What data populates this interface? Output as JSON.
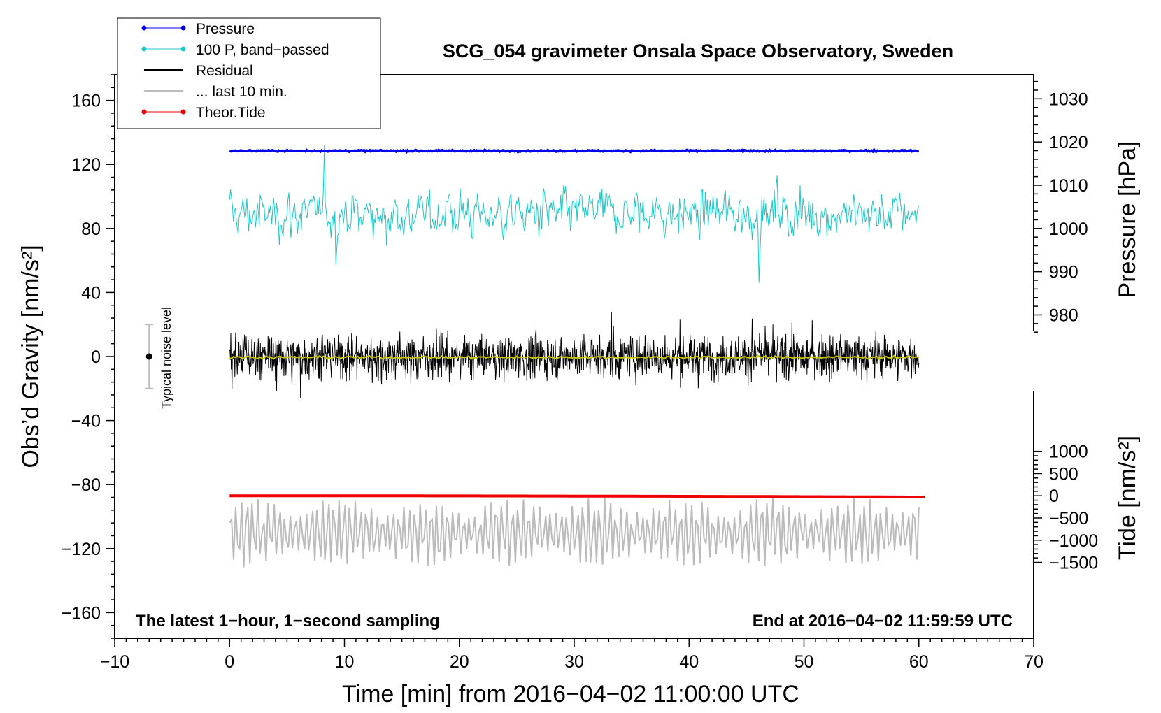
{
  "chart_data": {
    "type": "line",
    "title": "SCG_054 gravimeter Onsala Space Observatory, Sweden",
    "xlabel": "Time [min] from 2016−04−02 11:00:00 UTC",
    "ylabel_left": "Obs’d Gravity [nm/s²]",
    "ylabel_right_pressure": "Pressure [hPa]",
    "ylabel_right_tide": "Tide [nm/s²]",
    "xlim": [
      -10,
      70
    ],
    "ylim_left": [
      -176,
      176
    ],
    "x_ticks": [
      {
        "v": -10,
        "label": "−10"
      },
      {
        "v": 0,
        "label": "0"
      },
      {
        "v": 10,
        "label": "10"
      },
      {
        "v": 20,
        "label": "20"
      },
      {
        "v": 30,
        "label": "30"
      },
      {
        "v": 40,
        "label": "40"
      },
      {
        "v": 50,
        "label": "50"
      },
      {
        "v": 60,
        "label": "60"
      },
      {
        "v": 70,
        "label": "70"
      }
    ],
    "left_ticks": [
      {
        "v": 160,
        "label": "160"
      },
      {
        "v": 120,
        "label": "120"
      },
      {
        "v": 80,
        "label": "80"
      },
      {
        "v": 40,
        "label": "40"
      },
      {
        "v": 0,
        "label": "0"
      },
      {
        "v": -40,
        "label": "−40"
      },
      {
        "v": -80,
        "label": "−80"
      },
      {
        "v": -120,
        "label": "−120"
      },
      {
        "v": -160,
        "label": "−160"
      }
    ],
    "pressure_axis": {
      "gravity_per_hpa": 2.7,
      "gravity_at_1000": 80,
      "ticks": [
        {
          "v": 1030,
          "label": "1030"
        },
        {
          "v": 1020,
          "label": "1020"
        },
        {
          "v": 1010,
          "label": "1010"
        },
        {
          "v": 1000,
          "label": "1000"
        },
        {
          "v": 990,
          "label": "990"
        },
        {
          "v": 980,
          "label": "980"
        }
      ]
    },
    "tide_axis": {
      "gravity_per_unit": 0.02775,
      "gravity_at_0": -87,
      "ticks": [
        {
          "v": 1000,
          "label": "1000"
        },
        {
          "v": 500,
          "label": "500"
        },
        {
          "v": 0,
          "label": "0"
        },
        {
          "v": -500,
          "label": "−500"
        },
        {
          "v": -1000,
          "label": "−1000"
        },
        {
          "v": -1500,
          "label": "−1500"
        }
      ]
    },
    "legend": [
      {
        "label": "Pressure",
        "color": "#0000ee",
        "marker": "dot"
      },
      {
        "label": "100 P, band−passed",
        "color": "#1ec8c8",
        "marker": "dot"
      },
      {
        "label": "Residual",
        "color": "#000000",
        "marker": "none"
      },
      {
        "label": "... last 10 min.",
        "color": "#bbbbbb",
        "marker": "none"
      },
      {
        "label": "Theor.Tide",
        "color": "#ee0000",
        "marker": "dot"
      }
    ],
    "series": [
      {
        "name": "Pressure",
        "color": "#0000ee",
        "x_range": [
          0,
          60
        ],
        "level_hpa": 1017.5,
        "approx_gravity": 128.5
      },
      {
        "name": "100 P, band−passed",
        "color": "#1ec8c8",
        "x_range": [
          0,
          60
        ],
        "center": 89,
        "spread": [
          28,
          132
        ]
      },
      {
        "name": "Residual",
        "color": "#000000",
        "x_range": [
          0,
          60
        ],
        "center": 0,
        "spread": [
          -38,
          41
        ]
      },
      {
        "name": "Residual smoothed",
        "color": "#c8c800",
        "x_range": [
          0,
          60
        ],
        "center": -0.5
      },
      {
        "name": "... last 10 min.",
        "color": "#bbbbbb",
        "x_range": [
          0,
          60
        ],
        "center": -110,
        "spread": [
          -132,
          -78
        ]
      },
      {
        "name": "Theor.Tide",
        "color": "#ee0000",
        "x_range": [
          0,
          60.5
        ],
        "approx_gravity_start": -87,
        "approx_gravity_end": -87.8
      }
    ],
    "noise_bar": {
      "label": "Typical noise level",
      "x": -7,
      "center": 0,
      "half_range": 20
    },
    "corner_left": "The latest 1−hour, 1−second sampling",
    "corner_right": "End at 2016−04−02 11:59:59 UTC"
  }
}
